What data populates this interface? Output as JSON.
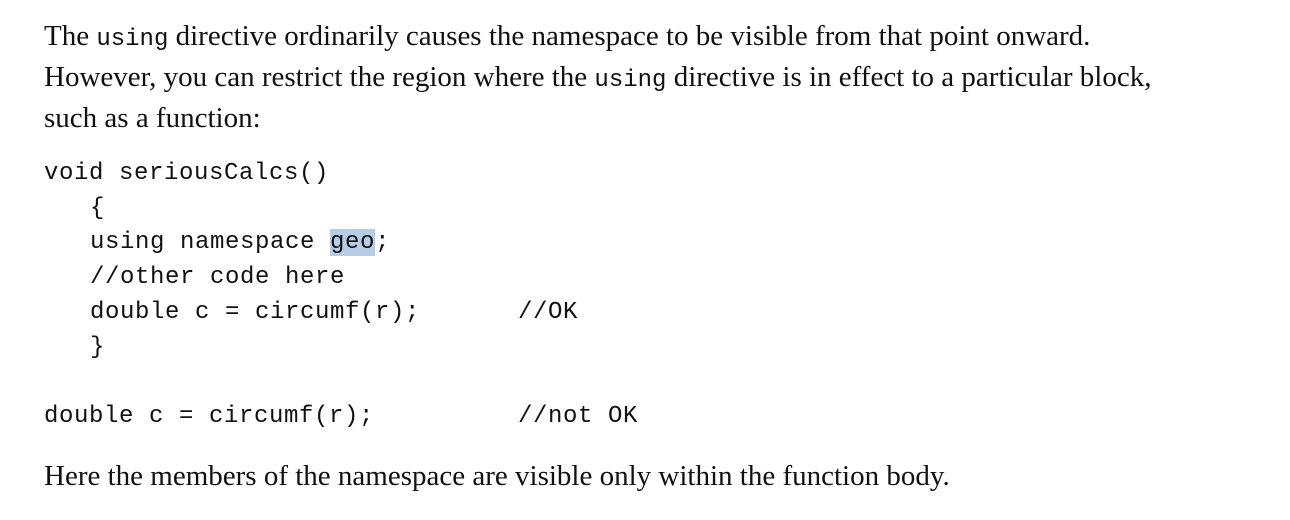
{
  "intro": {
    "line1_a": "The ",
    "line1_code": "using",
    "line1_b": " directive ordinarily causes the namespace to be visible from that point onward.",
    "line2_a": "However, you can restrict the region where the ",
    "line2_code": "using",
    "line2_b": " directive is in effect to a particular block,",
    "line3": "such as a function:"
  },
  "code": {
    "func_sig": "void seriousCalcs()",
    "open_brace": "{",
    "using_prefix": "using namespace ",
    "using_ns": "geo",
    "using_suffix": ";",
    "comment_line": "//other code here",
    "inner_stmt": "double c = circumf(r);",
    "inner_comment": "//OK",
    "close_brace": "}",
    "outer_stmt": "double c = circumf(r);",
    "outer_comment": "//not OK"
  },
  "outro": "Here the members of the namespace are visible only within the function body."
}
